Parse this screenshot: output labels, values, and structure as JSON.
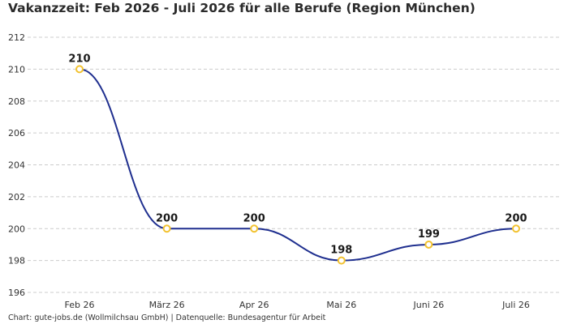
{
  "title": "Vakanzzeit: Feb 2026 - Juli 2026 für alle Berufe (Region München)",
  "footer": "Chart: gute-jobs.de (Wollmilchsau GmbH) | Datenquelle: Bundesagentur für Arbeit",
  "colors": {
    "line": "#1f2f8f",
    "marker_stroke": "#f2c230",
    "marker_fill": "#ffffff",
    "grid": "#cccccc"
  },
  "chart_data": {
    "type": "line",
    "title": "Vakanzzeit: Feb 2026 - Juli 2026 für alle Berufe (Region München)",
    "xlabel": "",
    "ylabel": "",
    "categories": [
      "Feb 26",
      "März 26",
      "Apr 26",
      "Mai 26",
      "Juni 26",
      "Juli 26"
    ],
    "values": [
      210,
      200,
      200,
      198,
      199,
      200
    ],
    "data_labels": [
      "210",
      "200",
      "200",
      "198",
      "199",
      "200"
    ],
    "ylim": [
      196,
      212
    ],
    "yticks": [
      196,
      198,
      200,
      202,
      204,
      206,
      208,
      210,
      212
    ],
    "grid": true,
    "grid_style": "dashed",
    "legend": "none"
  }
}
